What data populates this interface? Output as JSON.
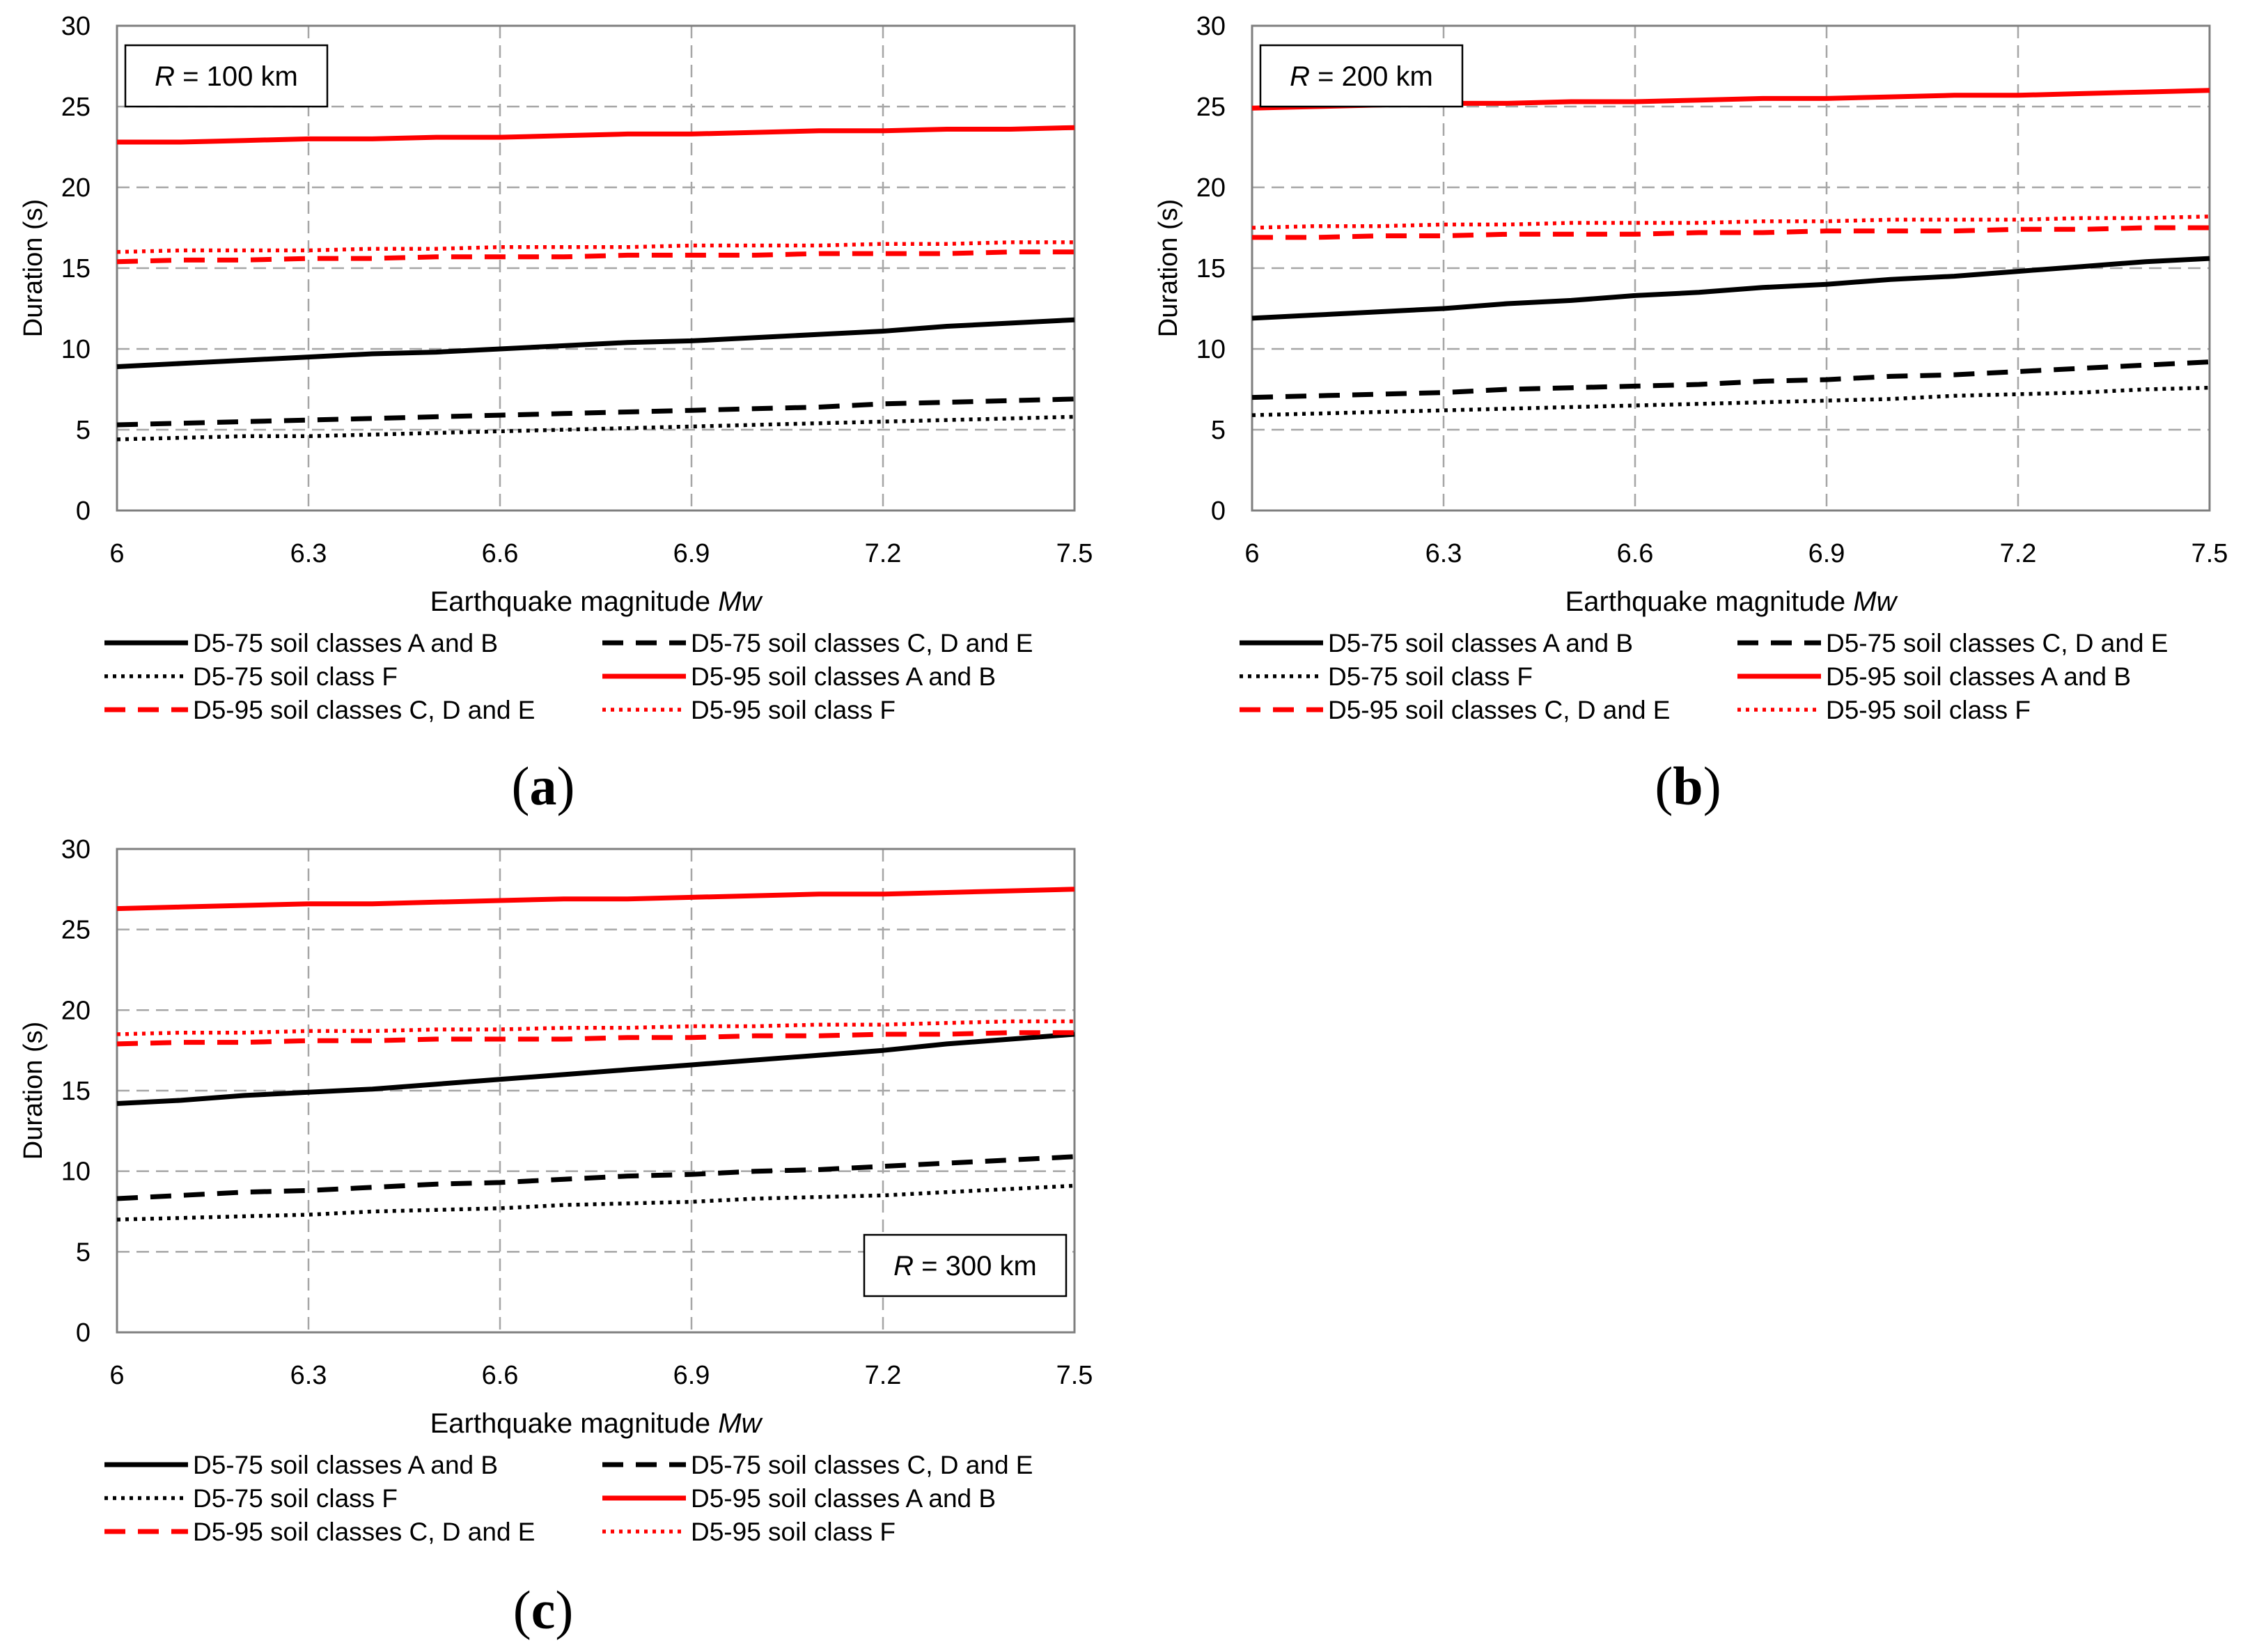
{
  "chart_data": [
    {
      "panel_label": "(a)",
      "panel_letter": "a",
      "type": "line",
      "annotation": {
        "italic": "R",
        "rest": " = 100 km"
      },
      "annotation_position": "top-left",
      "xlabel": "Earthquake magnitude ",
      "xlabel_italic": "Mw",
      "ylabel": "Duration (s)",
      "xlim": [
        6,
        7.5
      ],
      "ylim": [
        0,
        30
      ],
      "xticks": [
        "6",
        "6.3",
        "6.6",
        "6.9",
        "7.2",
        "7.5"
      ],
      "yticks": [
        "0",
        "5",
        "10",
        "15",
        "20",
        "25",
        "30"
      ],
      "grid": true,
      "x": [
        6,
        6.1,
        6.2,
        6.3,
        6.4,
        6.5,
        6.6,
        6.7,
        6.8,
        6.9,
        7.0,
        7.1,
        7.2,
        7.3,
        7.4,
        7.5
      ],
      "series": [
        {
          "name": "D5-75 soil classes A and B",
          "color": "#000000",
          "style": "solid",
          "values": [
            8.9,
            9.1,
            9.3,
            9.5,
            9.7,
            9.8,
            10.0,
            10.2,
            10.4,
            10.5,
            10.7,
            10.9,
            11.1,
            11.4,
            11.6,
            11.8
          ]
        },
        {
          "name": "D5-75 soil classes C, D and E",
          "color": "#000000",
          "style": "dashed",
          "values": [
            5.3,
            5.4,
            5.5,
            5.6,
            5.7,
            5.8,
            5.9,
            6.0,
            6.1,
            6.2,
            6.3,
            6.4,
            6.6,
            6.7,
            6.8,
            6.9
          ]
        },
        {
          "name": "D5-75 soil class F",
          "color": "#000000",
          "style": "dotted",
          "values": [
            4.4,
            4.5,
            4.6,
            4.6,
            4.7,
            4.8,
            4.9,
            5.0,
            5.1,
            5.2,
            5.3,
            5.4,
            5.5,
            5.6,
            5.7,
            5.8
          ]
        },
        {
          "name": "D5-95 soil classes A and B",
          "color": "#ff0000",
          "style": "solid",
          "values": [
            22.8,
            22.8,
            22.9,
            23.0,
            23.0,
            23.1,
            23.1,
            23.2,
            23.3,
            23.3,
            23.4,
            23.5,
            23.5,
            23.6,
            23.6,
            23.7
          ]
        },
        {
          "name": "D5-95 soil classes C, D and E",
          "color": "#ff0000",
          "style": "dashed",
          "values": [
            15.4,
            15.5,
            15.5,
            15.6,
            15.6,
            15.7,
            15.7,
            15.7,
            15.8,
            15.8,
            15.8,
            15.9,
            15.9,
            15.9,
            16.0,
            16.0
          ]
        },
        {
          "name": "D5-95 soil class F",
          "color": "#ff0000",
          "style": "dotted",
          "values": [
            16.0,
            16.1,
            16.1,
            16.1,
            16.2,
            16.2,
            16.3,
            16.3,
            16.3,
            16.4,
            16.4,
            16.4,
            16.5,
            16.5,
            16.6,
            16.6
          ]
        }
      ]
    },
    {
      "panel_label": "(b)",
      "panel_letter": "b",
      "type": "line",
      "annotation": {
        "italic": "R",
        "rest": " = 200 km"
      },
      "annotation_position": "top-left",
      "xlabel": "Earthquake magnitude ",
      "xlabel_italic": "Mw",
      "ylabel": "Duration (s)",
      "xlim": [
        6,
        7.5
      ],
      "ylim": [
        0,
        30
      ],
      "xticks": [
        "6",
        "6.3",
        "6.6",
        "6.9",
        "7.2",
        "7.5"
      ],
      "yticks": [
        "0",
        "5",
        "10",
        "15",
        "20",
        "25",
        "30"
      ],
      "grid": true,
      "x": [
        6,
        6.1,
        6.2,
        6.3,
        6.4,
        6.5,
        6.6,
        6.7,
        6.8,
        6.9,
        7.0,
        7.1,
        7.2,
        7.3,
        7.4,
        7.5
      ],
      "series": [
        {
          "name": "D5-75 soil classes A and B",
          "color": "#000000",
          "style": "solid",
          "values": [
            11.9,
            12.1,
            12.3,
            12.5,
            12.8,
            13.0,
            13.3,
            13.5,
            13.8,
            14.0,
            14.3,
            14.5,
            14.8,
            15.1,
            15.4,
            15.6
          ]
        },
        {
          "name": "D5-75 soil classes C, D and E",
          "color": "#000000",
          "style": "dashed",
          "values": [
            7.0,
            7.1,
            7.2,
            7.3,
            7.5,
            7.6,
            7.7,
            7.8,
            8.0,
            8.1,
            8.3,
            8.4,
            8.6,
            8.8,
            9.0,
            9.2
          ]
        },
        {
          "name": "D5-75 soil class F",
          "color": "#000000",
          "style": "dotted",
          "values": [
            5.9,
            6.0,
            6.1,
            6.2,
            6.3,
            6.4,
            6.5,
            6.6,
            6.7,
            6.8,
            6.9,
            7.1,
            7.2,
            7.3,
            7.5,
            7.6
          ]
        },
        {
          "name": "D5-95 soil classes A and B",
          "color": "#ff0000",
          "style": "solid",
          "values": [
            24.9,
            25.0,
            25.1,
            25.2,
            25.2,
            25.3,
            25.3,
            25.4,
            25.5,
            25.5,
            25.6,
            25.7,
            25.7,
            25.8,
            25.9,
            26.0
          ]
        },
        {
          "name": "D5-95 soil classes C, D and E",
          "color": "#ff0000",
          "style": "dashed",
          "values": [
            16.9,
            16.9,
            17.0,
            17.0,
            17.1,
            17.1,
            17.1,
            17.2,
            17.2,
            17.3,
            17.3,
            17.3,
            17.4,
            17.4,
            17.5,
            17.5
          ]
        },
        {
          "name": "D5-95 soil class F",
          "color": "#ff0000",
          "style": "dotted",
          "values": [
            17.5,
            17.6,
            17.6,
            17.7,
            17.7,
            17.8,
            17.8,
            17.8,
            17.9,
            17.9,
            18.0,
            18.0,
            18.0,
            18.1,
            18.1,
            18.2
          ]
        }
      ]
    },
    {
      "panel_label": "(c)",
      "panel_letter": "c",
      "type": "line",
      "annotation": {
        "italic": "R",
        "rest": " = 300 km"
      },
      "annotation_position": "bottom-right",
      "xlabel": "Earthquake magnitude ",
      "xlabel_italic": "Mw",
      "ylabel": "Duration (s)",
      "xlim": [
        6,
        7.5
      ],
      "ylim": [
        0,
        30
      ],
      "xticks": [
        "6",
        "6.3",
        "6.6",
        "6.9",
        "7.2",
        "7.5"
      ],
      "yticks": [
        "0",
        "5",
        "10",
        "15",
        "20",
        "25",
        "30"
      ],
      "grid": true,
      "x": [
        6,
        6.1,
        6.2,
        6.3,
        6.4,
        6.5,
        6.6,
        6.7,
        6.8,
        6.9,
        7.0,
        7.1,
        7.2,
        7.3,
        7.4,
        7.5
      ],
      "series": [
        {
          "name": "D5-75 soil classes A and B",
          "color": "#000000",
          "style": "solid",
          "values": [
            14.2,
            14.4,
            14.7,
            14.9,
            15.1,
            15.4,
            15.7,
            16.0,
            16.3,
            16.6,
            16.9,
            17.2,
            17.5,
            17.9,
            18.2,
            18.5
          ]
        },
        {
          "name": "D5-75 soil classes C, D and E",
          "color": "#000000",
          "style": "dashed",
          "values": [
            8.3,
            8.5,
            8.7,
            8.8,
            9.0,
            9.2,
            9.3,
            9.5,
            9.7,
            9.8,
            10.0,
            10.1,
            10.3,
            10.5,
            10.7,
            10.9
          ]
        },
        {
          "name": "D5-75 soil class F",
          "color": "#000000",
          "style": "dotted",
          "values": [
            7.0,
            7.1,
            7.2,
            7.3,
            7.5,
            7.6,
            7.7,
            7.9,
            8.0,
            8.1,
            8.3,
            8.4,
            8.5,
            8.7,
            8.9,
            9.1
          ]
        },
        {
          "name": "D5-95 soil classes A and B",
          "color": "#ff0000",
          "style": "solid",
          "values": [
            26.3,
            26.4,
            26.5,
            26.6,
            26.6,
            26.7,
            26.8,
            26.9,
            26.9,
            27.0,
            27.1,
            27.2,
            27.2,
            27.3,
            27.4,
            27.5
          ]
        },
        {
          "name": "D5-95 soil classes C, D and E",
          "color": "#ff0000",
          "style": "dashed",
          "values": [
            17.9,
            18.0,
            18.0,
            18.1,
            18.1,
            18.2,
            18.2,
            18.2,
            18.3,
            18.3,
            18.4,
            18.4,
            18.5,
            18.5,
            18.6,
            18.6
          ]
        },
        {
          "name": "D5-95 soil class F",
          "color": "#ff0000",
          "style": "dotted",
          "values": [
            18.5,
            18.6,
            18.6,
            18.7,
            18.7,
            18.8,
            18.8,
            18.9,
            18.9,
            19.0,
            19.0,
            19.1,
            19.1,
            19.2,
            19.3,
            19.3
          ]
        }
      ]
    }
  ]
}
